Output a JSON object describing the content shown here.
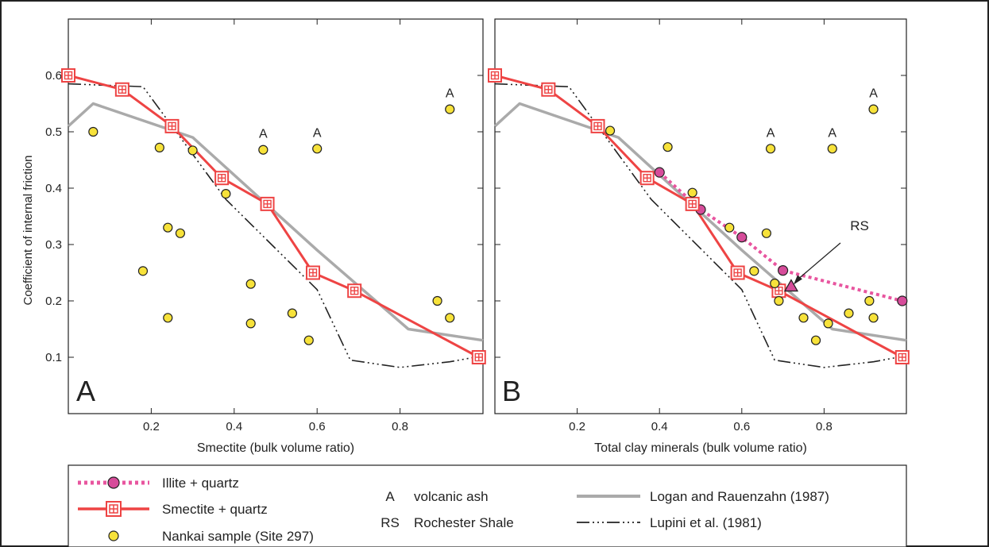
{
  "figure": {
    "ylabel": "Coefficient of internal friction",
    "colors": {
      "smectite": "#ee4444",
      "illite": "#e8559f",
      "illite_dot": "#d64c9a",
      "nankai_fill": "#f7e23a",
      "logan": "#aaaaaa",
      "lupini": "#222222"
    }
  },
  "chart_data": [
    {
      "type": "line",
      "panel_label": "A",
      "xlabel": "Smectite (bulk volume ratio)",
      "ylabel": "Coefficient of internal friction",
      "xlim": [
        0,
        1
      ],
      "ylim": [
        0,
        0.7
      ],
      "xticks": [
        0.2,
        0.4,
        0.6,
        0.8
      ],
      "yticks": [
        0.1,
        0.2,
        0.3,
        0.4,
        0.5,
        0.6
      ],
      "series": [
        {
          "name": "Logan and Rauenzahn (1987)",
          "style": "logan",
          "x": [
            0,
            0.06,
            0.3,
            0.6,
            0.82,
            1.0
          ],
          "y": [
            0.51,
            0.55,
            0.49,
            0.29,
            0.15,
            0.13
          ]
        },
        {
          "name": "Lupini et al. (1981)",
          "style": "lupini",
          "x": [
            0,
            0.18,
            0.38,
            0.6,
            0.68,
            0.8,
            0.92,
            0.98
          ],
          "y": [
            0.585,
            0.58,
            0.38,
            0.22,
            0.095,
            0.082,
            0.092,
            0.1
          ]
        },
        {
          "name": "Smectite + quartz",
          "style": "smectite",
          "x": [
            0,
            0.13,
            0.25,
            0.37,
            0.48,
            0.59,
            0.69,
            0.99
          ],
          "y": [
            0.6,
            0.575,
            0.51,
            0.418,
            0.372,
            0.25,
            0.218,
            0.1
          ]
        },
        {
          "name": "Nankai sample (Site 297)",
          "style": "nankai",
          "x": [
            0.06,
            0.18,
            0.22,
            0.24,
            0.24,
            0.27,
            0.3,
            0.38,
            0.44,
            0.44,
            0.47,
            0.54,
            0.58,
            0.6,
            0.89,
            0.92,
            0.92
          ],
          "y": [
            0.5,
            0.253,
            0.472,
            0.33,
            0.17,
            0.32,
            0.467,
            0.39,
            0.23,
            0.16,
            0.468,
            0.178,
            0.13,
            0.47,
            0.2,
            0.17,
            0.54
          ]
        }
      ],
      "annotations": [
        {
          "text": "A",
          "x": 0.47,
          "y": 0.468
        },
        {
          "text": "A",
          "x": 0.6,
          "y": 0.47
        },
        {
          "text": "A",
          "x": 0.92,
          "y": 0.54
        }
      ]
    },
    {
      "type": "line",
      "panel_label": "B",
      "xlabel": "Total clay minerals (bulk volume ratio)",
      "ylabel": "",
      "xlim": [
        0,
        1
      ],
      "ylim": [
        0,
        0.7
      ],
      "xticks": [
        0.2,
        0.4,
        0.6,
        0.8
      ],
      "yticks": [
        0.1,
        0.2,
        0.3,
        0.4,
        0.5,
        0.6
      ],
      "series": [
        {
          "name": "Logan and Rauenzahn (1987)",
          "style": "logan",
          "x": [
            0,
            0.06,
            0.3,
            0.6,
            0.82,
            1.0
          ],
          "y": [
            0.51,
            0.55,
            0.49,
            0.29,
            0.15,
            0.13
          ]
        },
        {
          "name": "Lupini et al. (1981)",
          "style": "lupini",
          "x": [
            0,
            0.18,
            0.38,
            0.6,
            0.68,
            0.8,
            0.92,
            0.98
          ],
          "y": [
            0.585,
            0.58,
            0.38,
            0.22,
            0.095,
            0.082,
            0.092,
            0.1
          ]
        },
        {
          "name": "Illite + quartz",
          "style": "illite",
          "x": [
            0.4,
            0.5,
            0.6,
            0.7,
            0.99
          ],
          "y": [
            0.428,
            0.362,
            0.313,
            0.254,
            0.2
          ]
        },
        {
          "name": "Smectite + quartz",
          "style": "smectite",
          "x": [
            0,
            0.13,
            0.25,
            0.37,
            0.48,
            0.59,
            0.69,
            0.99
          ],
          "y": [
            0.6,
            0.575,
            0.51,
            0.418,
            0.372,
            0.25,
            0.218,
            0.1
          ]
        },
        {
          "name": "Nankai sample (Site 297)",
          "style": "nankai",
          "x": [
            0.28,
            0.42,
            0.48,
            0.57,
            0.63,
            0.66,
            0.67,
            0.68,
            0.69,
            0.75,
            0.78,
            0.81,
            0.82,
            0.86,
            0.91,
            0.92,
            0.92
          ],
          "y": [
            0.502,
            0.473,
            0.392,
            0.33,
            0.253,
            0.32,
            0.47,
            0.231,
            0.2,
            0.17,
            0.13,
            0.16,
            0.47,
            0.178,
            0.2,
            0.17,
            0.54
          ]
        }
      ],
      "annotations": [
        {
          "text": "A",
          "x": 0.67,
          "y": 0.47
        },
        {
          "text": "A",
          "x": 0.82,
          "y": 0.47
        },
        {
          "text": "A",
          "x": 0.92,
          "y": 0.54
        }
      ],
      "rochester_shale": {
        "text": "RS",
        "x": 0.72,
        "y": 0.226
      }
    }
  ],
  "legend": {
    "illite": "Illite + quartz",
    "smectite": "Smectite + quartz",
    "nankai": "Nankai sample (Site 297)",
    "ash_symbol": "A",
    "ash_text": "volcanic ash",
    "rs_symbol": "RS",
    "rs_text": "Rochester Shale",
    "logan": "Logan and Rauenzahn (1987)",
    "lupini": "Lupini et al. (1981)"
  }
}
